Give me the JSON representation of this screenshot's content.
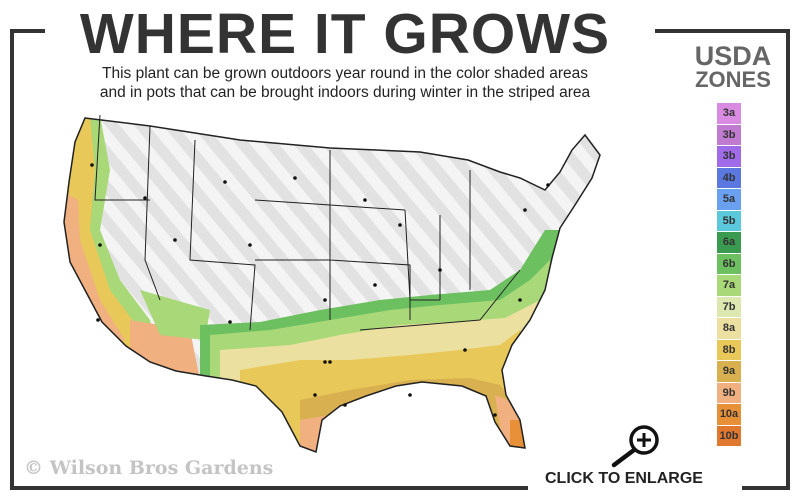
{
  "header": {
    "title": "WHERE IT GROWS",
    "subtitle_line1": "This plant can be grown outdoors year round in the color shaded areas",
    "subtitle_line2": "and in pots that can be brought indoors during winter in the striped area"
  },
  "legend": {
    "title_line1": "USDA",
    "title_line2": "ZONES",
    "zones": [
      {
        "label": "3a",
        "color": "#d88be0"
      },
      {
        "label": "3b",
        "color": "#c07ad0"
      },
      {
        "label": "3b",
        "color": "#9f6be8"
      },
      {
        "label": "4b",
        "color": "#5a78e0"
      },
      {
        "label": "5a",
        "color": "#6aa0f0"
      },
      {
        "label": "5b",
        "color": "#5cc8dc"
      },
      {
        "label": "6a",
        "color": "#3a9a50"
      },
      {
        "label": "6b",
        "color": "#6cc060"
      },
      {
        "label": "7a",
        "color": "#a8d878"
      },
      {
        "label": "7b",
        "color": "#dce8b0"
      },
      {
        "label": "8a",
        "color": "#ece0a0"
      },
      {
        "label": "8b",
        "color": "#e8c858"
      },
      {
        "label": "9a",
        "color": "#d8b050"
      },
      {
        "label": "9b",
        "color": "#f0b080"
      },
      {
        "label": "10a",
        "color": "#e89038"
      },
      {
        "label": "10b",
        "color": "#e07830"
      }
    ]
  },
  "footer": {
    "copyright": "© Wilson Bros Gardens",
    "enlarge_label": "CLICK TO ENLARGE",
    "enlarge_icon": "zoom-in-magnifier-icon"
  }
}
